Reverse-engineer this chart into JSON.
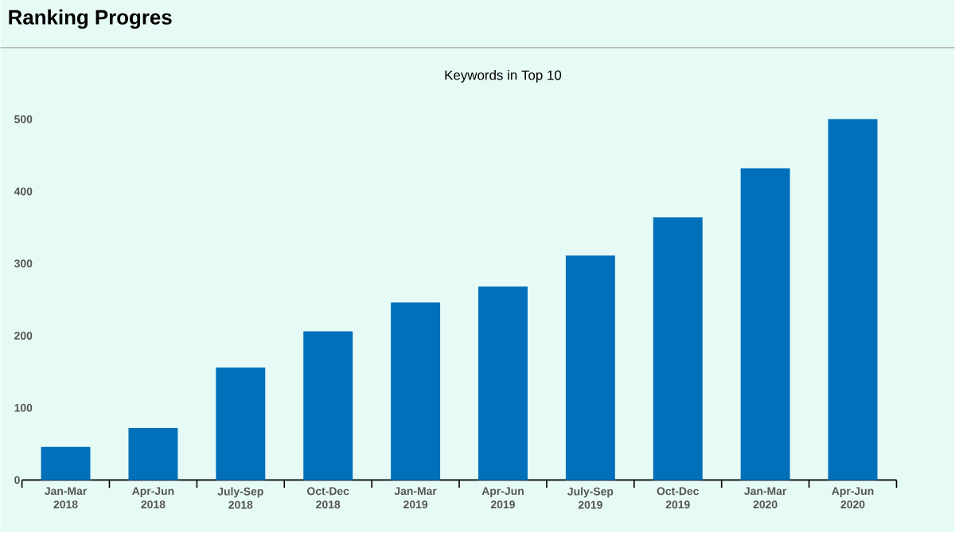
{
  "chart_data": {
    "type": "bar",
    "title": "Ranking Progres",
    "subtitle": "Keywords in Top 10",
    "categories": [
      "Jan-Mar 2018",
      "Apr-Jun 2018",
      "July-Sep 2018",
      "Oct-Dec 2018",
      "Jan-Mar 2019",
      "Apr-Jun 2019",
      "July-Sep 2019",
      "Oct-Dec 2019",
      "Jan-Mar 2020",
      "Apr-Jun 2020"
    ],
    "values": [
      46,
      72,
      156,
      206,
      246,
      268,
      311,
      364,
      432,
      500
    ],
    "color": "#0070bb",
    "ylim": [
      0,
      500
    ],
    "yticks": [
      0,
      100,
      200,
      300,
      400,
      500
    ]
  }
}
